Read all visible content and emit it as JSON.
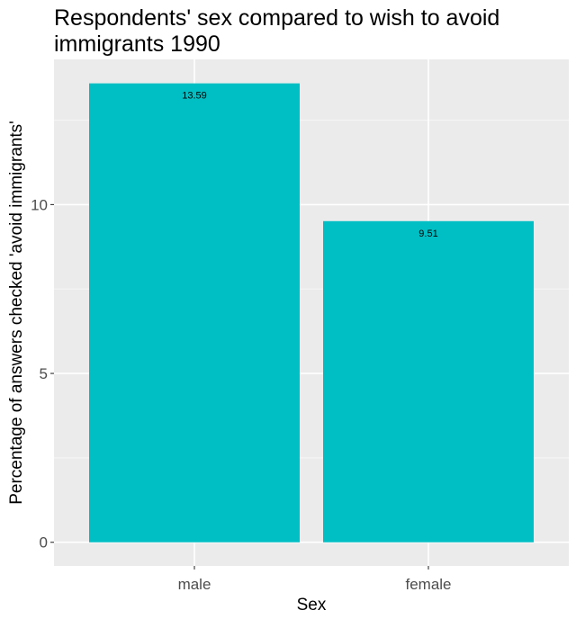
{
  "chart_data": {
    "type": "bar",
    "title": "Respondents' sex compared to wish to avoid immigrants 1990",
    "xlabel": "Sex",
    "ylabel": "Percentage of answers checked 'avoid immigrants'",
    "categories": [
      "male",
      "female"
    ],
    "values": [
      13.59,
      9.51
    ],
    "data_labels": [
      "13.59",
      "9.51"
    ],
    "ylim": [
      -0.7,
      14.3
    ],
    "yticks": [
      0,
      5,
      10
    ],
    "ytick_labels": [
      "0",
      "5",
      "10"
    ],
    "grid": true,
    "legend": "none",
    "colors": {
      "bar": "#00BFC4",
      "panel_background": "#EBEBEB",
      "grid_major": "#FFFFFF",
      "grid_minor": "#F5F5F5"
    }
  }
}
